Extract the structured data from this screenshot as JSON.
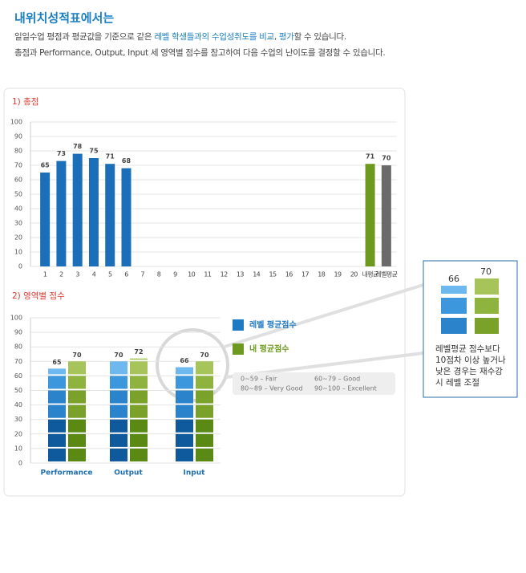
{
  "header": {
    "title": "내위치성적표에서는",
    "lines": [
      [
        {
          "text": "일일수업 평점과 평균값을 기준으로 같은 ",
          "color": "#444444"
        },
        {
          "text": "레벨 학생들과의 수업성취도를 비교",
          "color": "#1b7fc4"
        },
        {
          "text": ", ",
          "color": "#444444"
        },
        {
          "text": "평가",
          "color": "#1b7fc4"
        },
        {
          "text": "할 수 있습니다.",
          "color": "#444444"
        }
      ],
      [
        {
          "text": "총점과 Performance, Output, Input 세 영역별 점수를 참고하여 다음 수업의 난이도를 결정할 수 있습니다.",
          "color": "#444444"
        }
      ]
    ]
  },
  "chart_data": [
    {
      "type": "bar",
      "title": "1) 총점",
      "categories": [
        "1",
        "2",
        "3",
        "4",
        "5",
        "6",
        "7",
        "8",
        "9",
        "10",
        "11",
        "12",
        "13",
        "14",
        "15",
        "16",
        "17",
        "18",
        "19",
        "20",
        "내평균",
        "레벨평균"
      ],
      "values": [
        65,
        73,
        78,
        75,
        71,
        68,
        null,
        null,
        null,
        null,
        null,
        null,
        null,
        null,
        null,
        null,
        null,
        null,
        null,
        null,
        71,
        70
      ],
      "colors": [
        "#1a6fb8",
        "#1a6fb8",
        "#1a6fb8",
        "#1a6fb8",
        "#1a6fb8",
        "#1a6fb8",
        "#1a6fb8",
        "#1a6fb8",
        "#1a6fb8",
        "#1a6fb8",
        "#1a6fb8",
        "#1a6fb8",
        "#1a6fb8",
        "#1a6fb8",
        "#1a6fb8",
        "#1a6fb8",
        "#1a6fb8",
        "#1a6fb8",
        "#1a6fb8",
        "#1a6fb8",
        "#6d9a1e",
        "#6a6a6a"
      ],
      "ylim": [
        0,
        100
      ],
      "yticks": [
        0,
        10,
        20,
        30,
        40,
        50,
        60,
        70,
        80,
        90,
        100
      ],
      "grid": true
    },
    {
      "type": "segmented_bar",
      "title": "2) 영역별 점수",
      "categories": [
        "Performance",
        "Output",
        "Input"
      ],
      "series": [
        {
          "name": "레벨 평균점수",
          "color": "#1f7ac4",
          "values": [
            65,
            70,
            66
          ],
          "block_colors": [
            "#0e5a9c",
            "#0e5a9c",
            "#0e5a9c",
            "#2b83cc",
            "#2b83cc",
            "#3d97dc",
            "#6db8ee"
          ]
        },
        {
          "name": "내 평균점수",
          "color": "#6d9a1e",
          "values": [
            70,
            72,
            70
          ],
          "block_colors": [
            "#5a8a14",
            "#5a8a14",
            "#5a8a14",
            "#7aa22a",
            "#7aa22a",
            "#8eb33e",
            "#a6c45a"
          ]
        }
      ],
      "block_size": 10,
      "ylim": [
        0,
        100
      ],
      "yticks": [
        0,
        10,
        20,
        30,
        40,
        50,
        60,
        70,
        80,
        90,
        100
      ],
      "grid": true,
      "grade_key": [
        "0~59 – Fair",
        "60~79 – Good",
        "80~89 – Very Good",
        "90~100 – Excellent"
      ]
    }
  ],
  "callout": {
    "labels": [
      "66",
      "70"
    ],
    "text": [
      "레벨평균 점수보다",
      "10점차 이상 높거나",
      "낮은 경우는 재수강",
      "시 레벨 조절"
    ]
  }
}
